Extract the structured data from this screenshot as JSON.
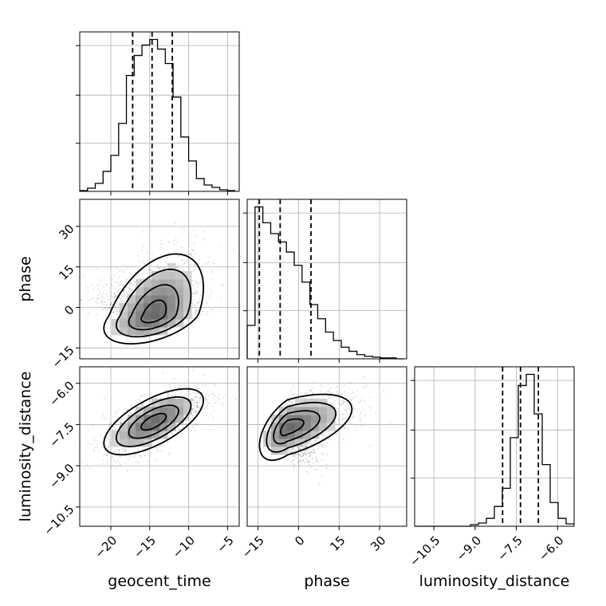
{
  "chart_data": {
    "type": "corner",
    "parameters": [
      "geocent_time",
      "phase",
      "luminosity_distance"
    ],
    "axes": {
      "geocent_time": {
        "label": "geocent_time",
        "range": [
          -24,
          -3.5
        ],
        "ticks": [
          -20,
          -15,
          -10,
          -5
        ],
        "tick_labels": [
          "−20",
          "−15",
          "−10",
          "−5"
        ]
      },
      "phase": {
        "label": "phase",
        "range": [
          -19,
          40
        ],
        "ticks": [
          -15,
          0,
          15,
          30
        ],
        "tick_labels": [
          "−15",
          "0",
          "15",
          "30"
        ]
      },
      "luminosity_distance": {
        "label": "luminosity_distance",
        "range": [
          -11.2,
          -5.4
        ],
        "ticks": [
          -10.5,
          -9.0,
          -7.5,
          -6.0
        ],
        "tick_labels": [
          "−10.5",
          "−9.0",
          "−7.5",
          "−6.0"
        ]
      }
    },
    "histograms": {
      "geocent_time": {
        "bin_edges": [
          -24,
          -23,
          -22,
          -21,
          -20,
          -19,
          -18,
          -17,
          -16,
          -15,
          -14,
          -13,
          -12,
          -11,
          -10,
          -9,
          -8,
          -7,
          -6,
          -5,
          -4
        ],
        "counts": [
          1,
          4,
          10,
          25,
          45,
          85,
          145,
          170,
          183,
          190,
          178,
          160,
          118,
          68,
          38,
          16,
          8,
          5,
          2,
          1
        ],
        "quantiles": [
          -17.2,
          -14.7,
          -12.1
        ]
      },
      "phase": {
        "bin_edges": [
          -19,
          -16.1,
          -13.2,
          -10.3,
          -7.4,
          -4.5,
          -1.6,
          1.3,
          4.2,
          7.1,
          10,
          12.9,
          15.8,
          18.7,
          21.6,
          24.5,
          27.4,
          30.3,
          33.2,
          36.1,
          39
        ],
        "counts": [
          40,
          182,
          163,
          150,
          140,
          128,
          112,
          92,
          65,
          48,
          32,
          22,
          14,
          9,
          5,
          3,
          2,
          1,
          1,
          0
        ],
        "quantiles": [
          -14.5,
          -6.8,
          4.6
        ]
      },
      "luminosity_distance": {
        "bin_edges": [
          -11.2,
          -10.91,
          -10.62,
          -10.33,
          -10.04,
          -9.75,
          -9.46,
          -9.17,
          -8.88,
          -8.59,
          -8.3,
          -8.01,
          -7.72,
          -7.43,
          -7.14,
          -6.85,
          -6.56,
          -6.27,
          -5.98,
          -5.69,
          -5.4
        ],
        "counts": [
          0,
          0,
          0,
          0,
          0,
          0,
          0,
          2,
          4,
          10,
          25,
          48,
          112,
          178,
          192,
          142,
          78,
          30,
          10,
          3
        ],
        "quantiles": [
          -8.0,
          -7.35,
          -6.7
        ]
      }
    },
    "joint": [
      {
        "x": "geocent_time",
        "y": "phase",
        "mean": [
          -14.5,
          -3
        ],
        "std": [
          3.2,
          9.5
        ],
        "corr": 0.45,
        "skew_y": true,
        "contour_levels": [
          0.5,
          1.0,
          1.5,
          2.0
        ]
      },
      {
        "x": "geocent_time",
        "y": "luminosity_distance",
        "mean": [
          -14.5,
          -7.4
        ],
        "std": [
          3.2,
          0.6
        ],
        "corr": 0.65,
        "contour_levels": [
          0.5,
          1.0,
          1.5,
          2.0
        ]
      },
      {
        "x": "phase",
        "y": "luminosity_distance",
        "mean": [
          -4,
          -7.6
        ],
        "std": [
          9.5,
          0.6
        ],
        "corr": 0.55,
        "skew_x": true,
        "contour_levels": [
          0.5,
          1.0,
          1.5,
          2.0
        ]
      }
    ],
    "grid": true
  }
}
